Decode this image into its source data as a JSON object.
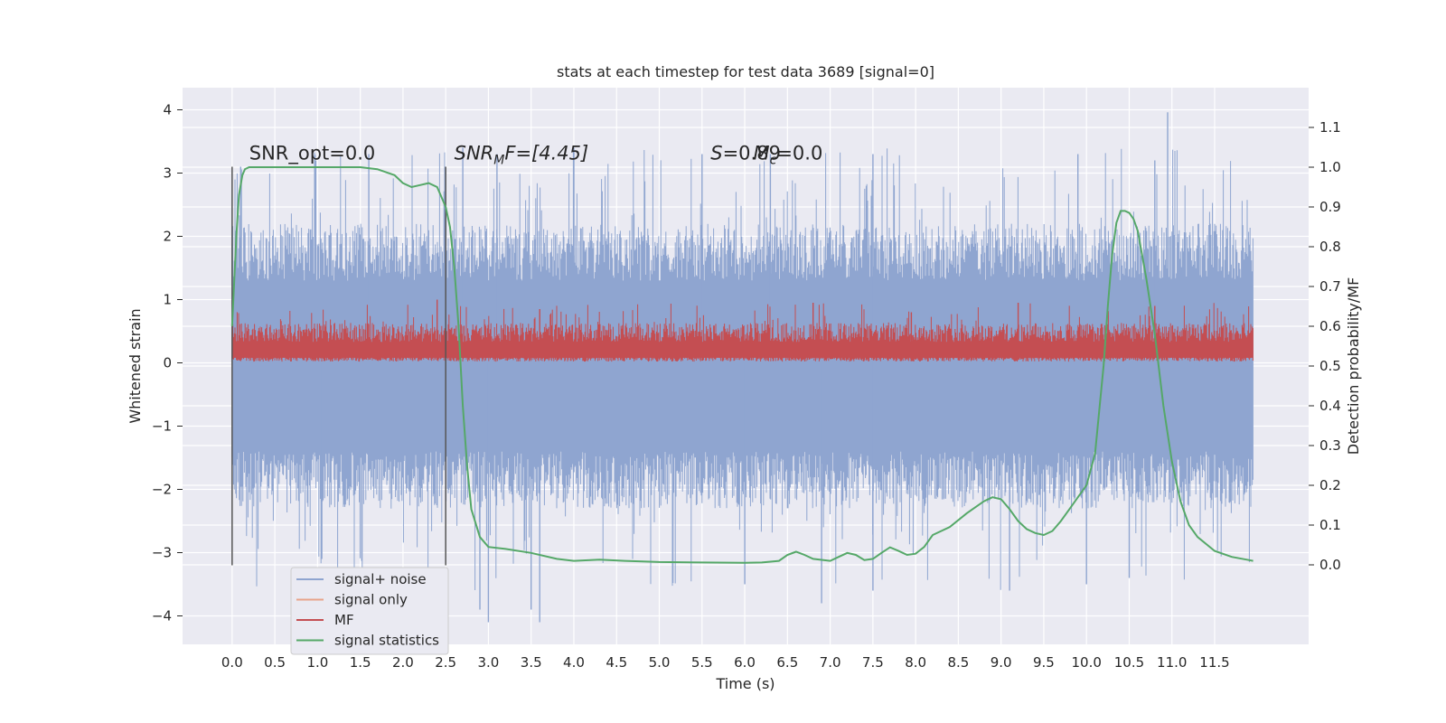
{
  "chart_data": {
    "type": "line",
    "title": "stats at each timestep for test data 3689 [signal=0]",
    "xlabel": "Time (s)",
    "ylabel_left": "Whitened strain",
    "ylabel_right": "Detection probability/MF",
    "xlim": [
      -0.58,
      12.6
    ],
    "ylim_left": [
      -4.45,
      4.35
    ],
    "ylim_right": [
      -0.2,
      1.2
    ],
    "x_ticks": [
      "0.0",
      "0.5",
      "1.0",
      "1.5",
      "2.0",
      "2.5",
      "3.0",
      "3.5",
      "4.0",
      "4.5",
      "5.0",
      "5.5",
      "6.0",
      "6.5",
      "7.0",
      "7.5",
      "8.0",
      "8.5",
      "9.0",
      "9.5",
      "10.0",
      "10.5",
      "11.0",
      "11.5"
    ],
    "y_left_ticks": [
      "−4",
      "−3",
      "−2",
      "−1",
      "0",
      "1",
      "2",
      "3",
      "4"
    ],
    "y_right_ticks": [
      "0.0",
      "0.1",
      "0.2",
      "0.3",
      "0.4",
      "0.5",
      "0.6",
      "0.7",
      "0.8",
      "0.9",
      "1.0",
      "1.1"
    ],
    "grid": true,
    "legend_position": "lower-left",
    "vlines": [
      0.0,
      2.5
    ],
    "annotations": {
      "snr_opt": "SNR_opt=0.0",
      "snr_mf_label": "SNR",
      "snr_mf_sub": "M",
      "snr_mf_tail": "F=[4.45]",
      "s_label": "S",
      "s_value": "=0.89",
      "mc_label": "M",
      "mc_sub": "c",
      "mc_value": "=0.0"
    },
    "series": [
      {
        "name": "signal+ noise",
        "color": "#8fa5d0",
        "description": "noise band approximately -2.5 to 2.5 with spikes reaching about ±4"
      },
      {
        "name": "signal only",
        "color": "#e8a48a",
        "values": []
      },
      {
        "name": "MF",
        "color": "#c44e52",
        "description": "values between 0 and about 1"
      },
      {
        "name": "signal statistics",
        "color": "#55a868",
        "axis": "right",
        "x": [
          0.0,
          0.05,
          0.08,
          0.12,
          0.15,
          0.2,
          0.3,
          0.5,
          1.0,
          1.5,
          1.7,
          1.9,
          2.0,
          2.1,
          2.2,
          2.3,
          2.4,
          2.5,
          2.55,
          2.6,
          2.65,
          2.7,
          2.75,
          2.8,
          2.9,
          3.0,
          3.2,
          3.5,
          3.8,
          4.0,
          4.3,
          4.6,
          5.0,
          5.5,
          6.0,
          6.2,
          6.4,
          6.5,
          6.6,
          6.7,
          6.8,
          7.0,
          7.1,
          7.2,
          7.3,
          7.4,
          7.5,
          7.6,
          7.7,
          7.8,
          7.9,
          8.0,
          8.1,
          8.2,
          8.4,
          8.6,
          8.8,
          8.9,
          9.0,
          9.1,
          9.2,
          9.3,
          9.4,
          9.5,
          9.6,
          9.7,
          9.8,
          9.9,
          10.0,
          10.1,
          10.2,
          10.25,
          10.3,
          10.35,
          10.4,
          10.45,
          10.5,
          10.55,
          10.6,
          10.7,
          10.8,
          10.9,
          11.0,
          11.1,
          11.2,
          11.3,
          11.5,
          11.7,
          11.9,
          11.95
        ],
        "values": [
          0.6,
          0.83,
          0.93,
          0.98,
          0.995,
          1.0,
          1.0,
          1.0,
          1.0,
          1.0,
          0.995,
          0.98,
          0.96,
          0.95,
          0.955,
          0.96,
          0.95,
          0.9,
          0.85,
          0.75,
          0.6,
          0.4,
          0.25,
          0.14,
          0.07,
          0.045,
          0.04,
          0.03,
          0.015,
          0.01,
          0.013,
          0.01,
          0.007,
          0.006,
          0.005,
          0.006,
          0.01,
          0.025,
          0.033,
          0.025,
          0.015,
          0.01,
          0.02,
          0.03,
          0.025,
          0.012,
          0.015,
          0.03,
          0.044,
          0.035,
          0.025,
          0.028,
          0.045,
          0.075,
          0.095,
          0.13,
          0.16,
          0.17,
          0.165,
          0.14,
          0.11,
          0.09,
          0.08,
          0.075,
          0.085,
          0.11,
          0.14,
          0.17,
          0.2,
          0.28,
          0.5,
          0.65,
          0.78,
          0.86,
          0.89,
          0.89,
          0.885,
          0.87,
          0.84,
          0.72,
          0.58,
          0.4,
          0.26,
          0.16,
          0.1,
          0.07,
          0.035,
          0.02,
          0.012,
          0.01
        ]
      }
    ]
  }
}
